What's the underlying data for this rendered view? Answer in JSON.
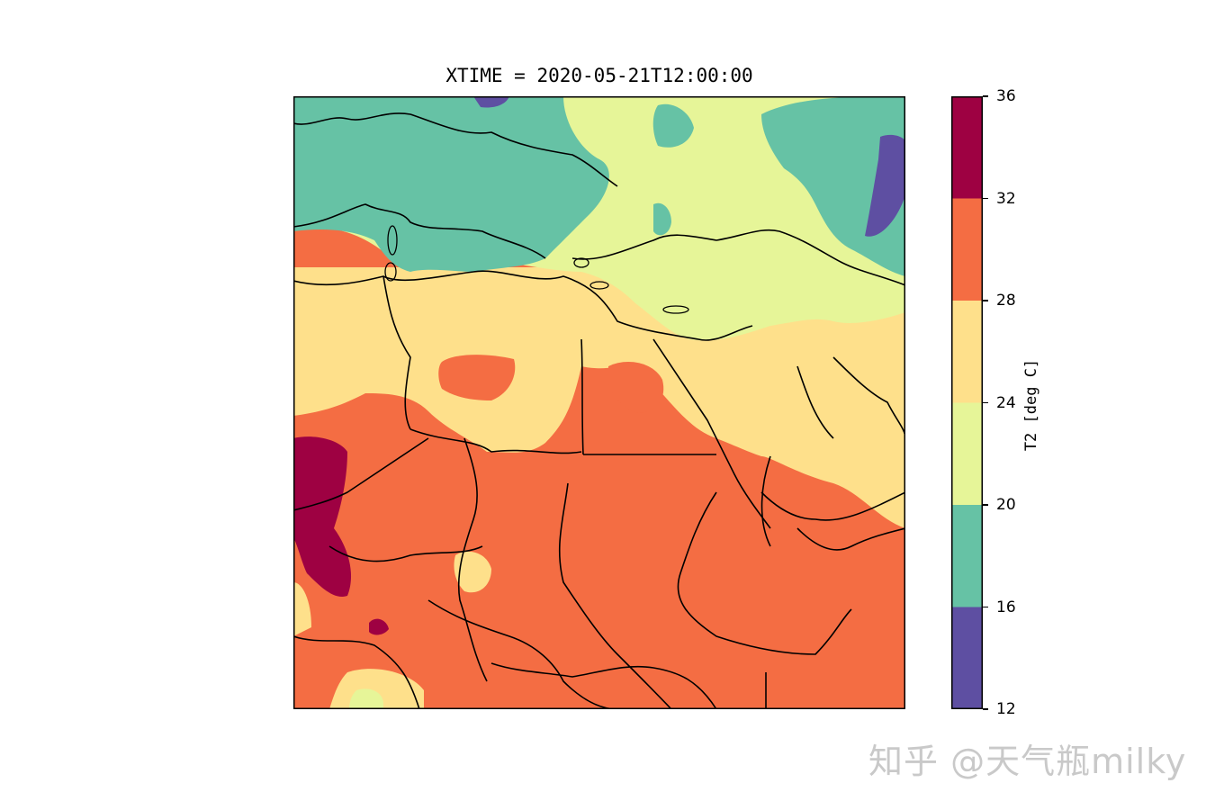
{
  "title": "XTIME = 2020-05-21T12:00:00",
  "colorbar": {
    "label": "T2 [deg C]",
    "ticks": [
      "36",
      "32",
      "28",
      "24",
      "20",
      "16",
      "12"
    ],
    "levels": [
      {
        "range": [
          12,
          16
        ],
        "color": "#5e4fa2"
      },
      {
        "range": [
          16,
          20
        ],
        "color": "#66c2a5"
      },
      {
        "range": [
          20,
          24
        ],
        "color": "#e6f598"
      },
      {
        "range": [
          24,
          28
        ],
        "color": "#fee08b"
      },
      {
        "range": [
          28,
          32
        ],
        "color": "#f46d43"
      },
      {
        "range": [
          32,
          36
        ],
        "color": "#9e0142"
      }
    ]
  },
  "watermark": "知乎 @天气瓶milky"
}
